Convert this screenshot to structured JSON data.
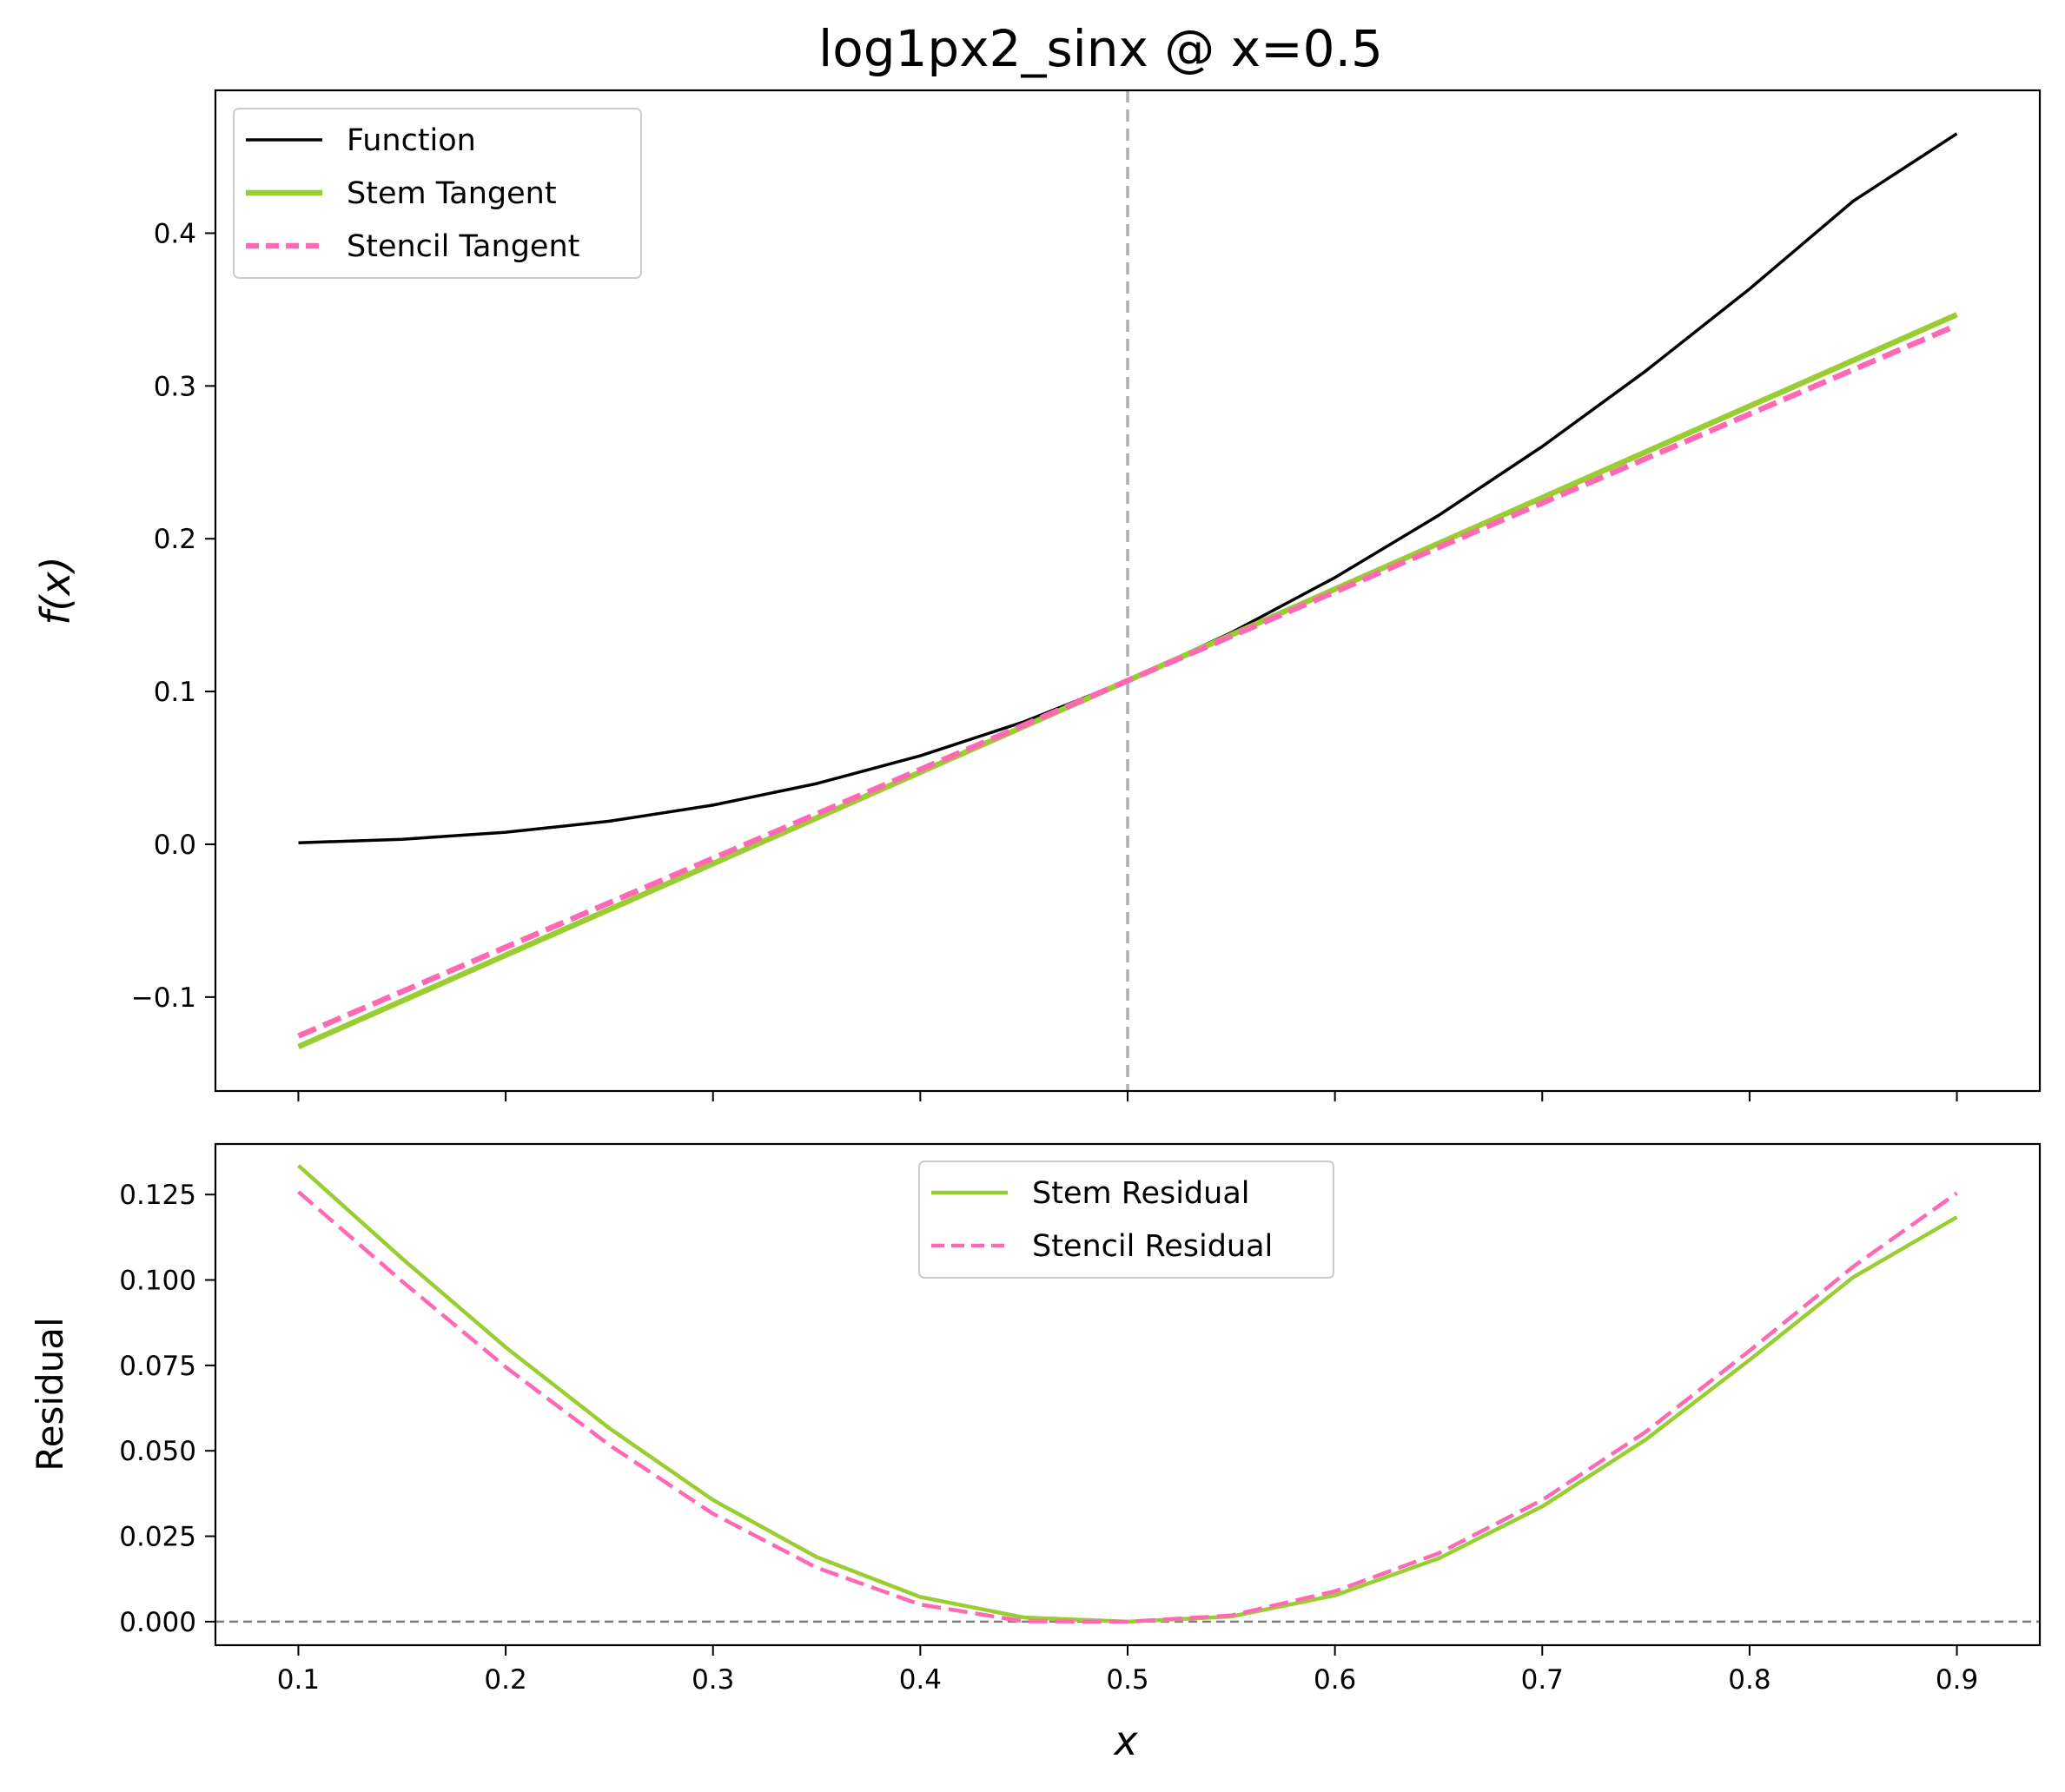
{
  "title": "log1px2_sinx @ x=0.5",
  "x_axis_label": "x",
  "colors": {
    "function": "#000000",
    "stem": "#9acd32",
    "stencil": "#ff69b4",
    "reference_vline": "#b0b0b0",
    "zero_hline": "#808080"
  },
  "chart_data": [
    {
      "id": "top",
      "type": "line",
      "title": "log1px2_sinx @ x=0.5",
      "ylabel": "f(x)",
      "xlabel": "",
      "xlim": [
        0.06,
        0.94
      ],
      "ylim": [
        -0.1615,
        0.4935
      ],
      "x_ticks": [
        0.1,
        0.2,
        0.3,
        0.4,
        0.5,
        0.6,
        0.7,
        0.8,
        0.9
      ],
      "x_tick_labels_shown": false,
      "y_ticks": [
        -0.1,
        0.0,
        0.1,
        0.2,
        0.3,
        0.4
      ],
      "y_tick_labels": [
        "−0.1",
        "0.0",
        "0.1",
        "0.2",
        "0.3",
        "0.4"
      ],
      "grid": false,
      "legend_position": "upper-left",
      "reference_vline_x": 0.5,
      "series": [
        {
          "name": "Function",
          "color": "#000000",
          "style": "solid",
          "x": [
            0.1,
            0.15,
            0.2,
            0.25,
            0.3,
            0.35,
            0.4,
            0.45,
            0.5,
            0.55,
            0.6,
            0.65,
            0.7,
            0.75,
            0.8,
            0.85,
            0.9
          ],
          "y": [
            0.001,
            0.0033,
            0.0079,
            0.0151,
            0.0256,
            0.0397,
            0.0579,
            0.0802,
            0.1071,
            0.1385,
            0.1746,
            0.2153,
            0.2604,
            0.3099,
            0.3635,
            0.421,
            0.4651
          ]
        },
        {
          "name": "Stem Tangent",
          "color": "#9acd32",
          "style": "solid",
          "x": [
            0.1,
            0.9
          ],
          "y": [
            -0.1325,
            0.3467
          ]
        },
        {
          "name": "Stencil Tangent",
          "color": "#ff69b4",
          "style": "dashed",
          "x": [
            0.1,
            0.9
          ],
          "y": [
            -0.1255,
            0.3397
          ]
        }
      ]
    },
    {
      "id": "bottom",
      "type": "line",
      "title": "",
      "xlabel": "x",
      "ylabel": "Residual",
      "xlim": [
        0.06,
        0.94
      ],
      "ylim": [
        -0.0069,
        0.1398
      ],
      "x_ticks": [
        0.1,
        0.2,
        0.3,
        0.4,
        0.5,
        0.6,
        0.7,
        0.8,
        0.9
      ],
      "x_tick_labels": [
        "0.1",
        "0.2",
        "0.3",
        "0.4",
        "0.5",
        "0.6",
        "0.7",
        "0.8",
        "0.9"
      ],
      "y_ticks": [
        0.0,
        0.025,
        0.05,
        0.075,
        0.1,
        0.125
      ],
      "y_tick_labels": [
        "0.000",
        "0.025",
        "0.050",
        "0.075",
        "0.100",
        "0.125"
      ],
      "grid": false,
      "legend_position": "upper-center",
      "zero_hline_y": 0.0,
      "series": [
        {
          "name": "Stem Residual",
          "color": "#9acd32",
          "style": "solid",
          "x": [
            0.1,
            0.15,
            0.2,
            0.25,
            0.3,
            0.35,
            0.4,
            0.45,
            0.5,
            0.55,
            0.6,
            0.65,
            0.7,
            0.75,
            0.8,
            0.85,
            0.9
          ],
          "y": [
            0.1335,
            0.1063,
            0.0803,
            0.0566,
            0.0356,
            0.0189,
            0.0072,
            0.0012,
            0.0,
            0.0015,
            0.0077,
            0.0185,
            0.0337,
            0.0533,
            0.0766,
            0.1008,
            0.1184
          ]
        },
        {
          "name": "Stencil Residual",
          "color": "#ff69b4",
          "style": "dashed",
          "x": [
            0.1,
            0.15,
            0.2,
            0.25,
            0.3,
            0.35,
            0.4,
            0.45,
            0.5,
            0.55,
            0.6,
            0.65,
            0.7,
            0.75,
            0.8,
            0.85,
            0.9
          ],
          "y": [
            0.1258,
            0.0996,
            0.0745,
            0.0517,
            0.0316,
            0.0158,
            0.005,
            0.0001,
            0.0,
            0.0018,
            0.0089,
            0.02,
            0.0356,
            0.0556,
            0.0793,
            0.1039,
            0.1254
          ]
        }
      ]
    }
  ]
}
